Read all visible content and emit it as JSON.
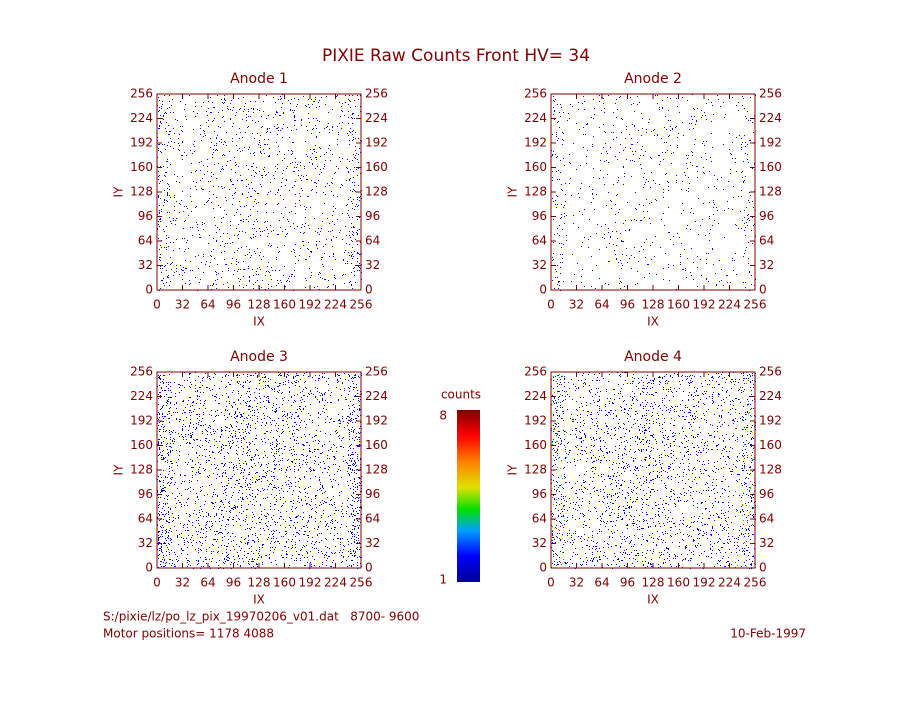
{
  "title": "PIXIE Raw Counts Front HV= 34",
  "chart_data": [
    {
      "type": "image",
      "title": "Anode 1",
      "xlabel": "IX",
      "ylabel": "IY",
      "xlim": [
        0,
        256
      ],
      "ylim": [
        0,
        256
      ],
      "xticks": [
        0,
        32,
        64,
        96,
        128,
        160,
        192,
        224,
        256
      ],
      "yticks": [
        0,
        32,
        64,
        96,
        128,
        160,
        192,
        224,
        256
      ]
    },
    {
      "type": "image",
      "title": "Anode 2",
      "xlabel": "IX",
      "ylabel": "IY",
      "xlim": [
        0,
        256
      ],
      "ylim": [
        0,
        256
      ],
      "xticks": [
        0,
        32,
        64,
        96,
        128,
        160,
        192,
        224,
        256
      ],
      "yticks": [
        0,
        32,
        64,
        96,
        128,
        160,
        192,
        224,
        256
      ]
    },
    {
      "type": "image",
      "title": "Anode 3",
      "xlabel": "IX",
      "ylabel": "IY",
      "xlim": [
        0,
        256
      ],
      "ylim": [
        0,
        256
      ],
      "xticks": [
        0,
        32,
        64,
        96,
        128,
        160,
        192,
        224,
        256
      ],
      "yticks": [
        0,
        32,
        64,
        96,
        128,
        160,
        192,
        224,
        256
      ]
    },
    {
      "type": "image",
      "title": "Anode 4",
      "xlabel": "IX",
      "ylabel": "IY",
      "xlim": [
        0,
        256
      ],
      "ylim": [
        0,
        256
      ],
      "xticks": [
        0,
        32,
        64,
        96,
        128,
        160,
        192,
        224,
        256
      ],
      "yticks": [
        0,
        32,
        64,
        96,
        128,
        160,
        192,
        224,
        256
      ]
    }
  ],
  "colorbar": {
    "label": "counts",
    "lim": [
      1,
      8
    ],
    "ticks": [
      1,
      8
    ]
  },
  "footer": {
    "file": "S:/pixie/lz/po_lz_pix_19970206_v01.dat   8700- 9600",
    "motor": "Motor positions= 1178 4088",
    "date": "10-Feb-1997"
  }
}
